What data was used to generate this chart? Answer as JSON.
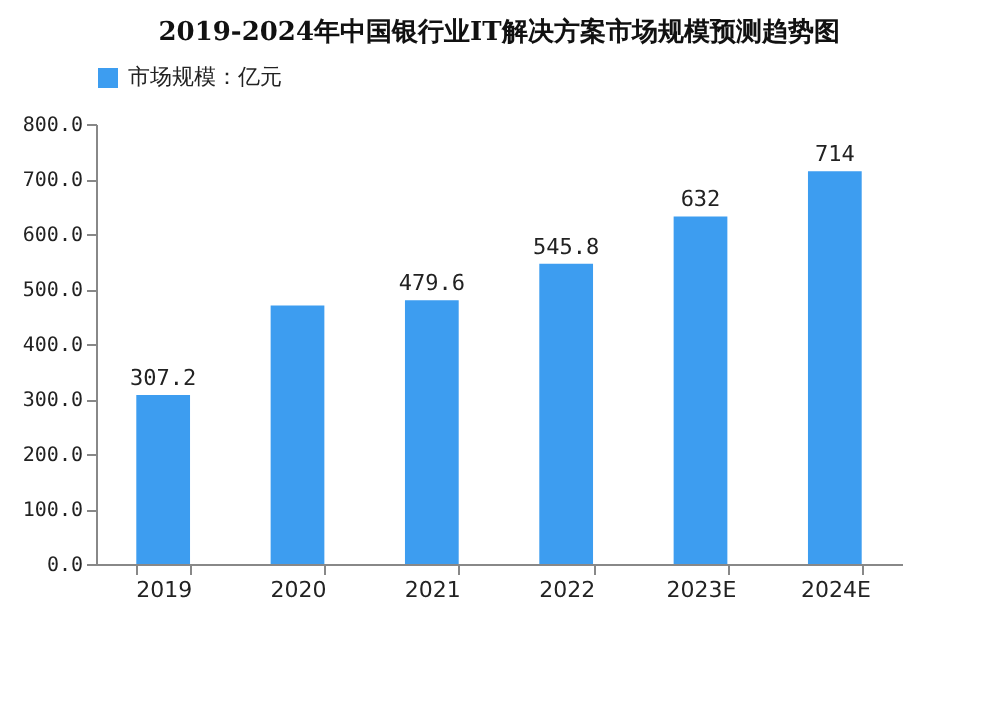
{
  "chart_data": {
    "type": "bar",
    "title": "2019-2024年中国银行业IT解决方案市场规模预测趋势图",
    "categories": [
      "2019",
      "2020",
      "2021",
      "2022",
      "2023E",
      "2024E"
    ],
    "series": [
      {
        "name": "市场规模：亿元",
        "color": "#3d9df0",
        "values": [
          307.2,
          470,
          479.6,
          545.8,
          632,
          714
        ]
      }
    ],
    "value_labels": [
      "307.2",
      null,
      "479.6",
      "545.8",
      "632",
      "714"
    ],
    "ylim": [
      0,
      800
    ],
    "yticks": [
      {
        "value": 0,
        "label": "0.0"
      },
      {
        "value": 100,
        "label": "100.0"
      },
      {
        "value": 200,
        "label": "200.0"
      },
      {
        "value": 300,
        "label": "300.0"
      },
      {
        "value": 400,
        "label": "400.0"
      },
      {
        "value": 500,
        "label": "500.0"
      },
      {
        "value": 600,
        "label": "600.0"
      },
      {
        "value": 700,
        "label": "700.0"
      },
      {
        "value": 800,
        "label": "800.0"
      }
    ],
    "grid": false,
    "legend": "top"
  }
}
